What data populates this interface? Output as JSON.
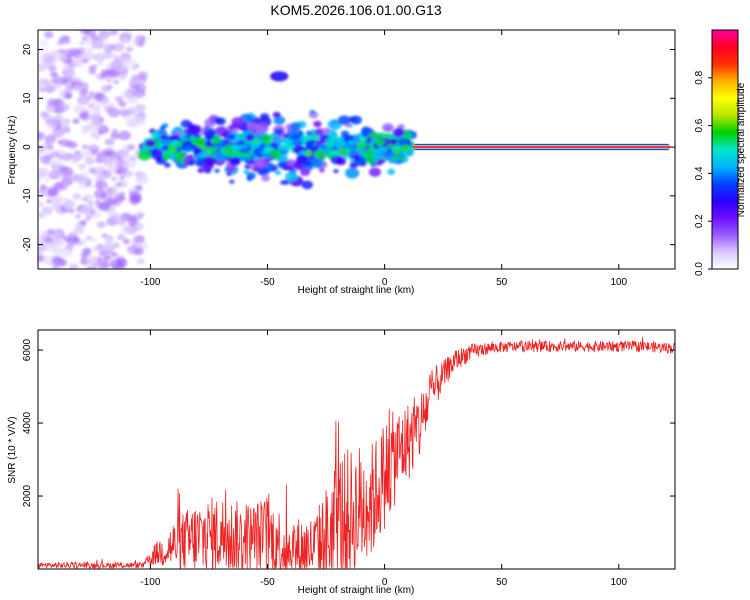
{
  "chart_data": [
    {
      "type": "heatmap",
      "title": "KOM5.2026.106.01.00.G13",
      "xlabel": "Height of straight line (km)",
      "ylabel": "Frequency (Hz)",
      "xlim": [
        -148,
        124
      ],
      "ylim": [
        -25,
        24
      ],
      "xticks": [
        -100,
        -50,
        0,
        50,
        100
      ],
      "xtick_labels": [
        "-100",
        "-50",
        "0",
        "50",
        "100"
      ],
      "yticks": [
        -20,
        -10,
        0,
        10,
        20
      ],
      "ytick_labels": [
        "-20",
        "-10",
        "0",
        "10",
        "20"
      ],
      "colorbar": {
        "label": "Normalized spectral amplitude",
        "range": [
          0,
          1
        ],
        "ticks": [
          0.0,
          0.2,
          0.4,
          0.6,
          0.8
        ],
        "tick_labels": [
          "0.0",
          "0.2",
          "0.4",
          "0.6",
          "0.8"
        ],
        "colormap": [
          "#ffffff",
          "#d9c7ff",
          "#9a5cff",
          "#6a0dff",
          "#2a00ff",
          "#0044ff",
          "#00b7ff",
          "#00e6c8",
          "#00d000",
          "#b7e600",
          "#ffff00",
          "#ffb000",
          "#ff3000",
          "#ff0020",
          "#ff00a0"
        ]
      },
      "features": [
        {
          "description": "weak noise speckle",
          "x_range": [
            -148,
            -103
          ],
          "freq_range": [
            -25,
            24
          ],
          "amplitude": 0.1
        },
        {
          "description": "scattered energy band",
          "x_range": [
            -103,
            12
          ],
          "freq_range": [
            -8,
            8
          ],
          "amplitude": 0.3
        },
        {
          "description": "isolated blob",
          "x": -45,
          "freq": 14.5,
          "amplitude": 0.35
        },
        {
          "description": "steady carrier tone",
          "x_range": [
            12,
            122
          ],
          "freq": 0,
          "amplitude": 1.0
        }
      ]
    },
    {
      "type": "line",
      "xlabel": "Height of straight line (km)",
      "ylabel": "SNR (10 * V/V)",
      "xlim": [
        -148,
        124
      ],
      "ylim": [
        0,
        6550
      ],
      "xticks": [
        -100,
        -50,
        0,
        50,
        100
      ],
      "xtick_labels": [
        "-100",
        "-50",
        "0",
        "50",
        "100"
      ],
      "yticks": [
        2000,
        4000,
        6000
      ],
      "ytick_labels": [
        "2000",
        "4000",
        "6000"
      ],
      "series": [
        {
          "name": "SNR",
          "color": "#ee2222",
          "envelope_x": [
            -148,
            -103,
            -98,
            -90,
            -80,
            -70,
            -60,
            -50,
            -40,
            -30,
            -25,
            -20,
            -15,
            -10,
            -5,
            0,
            5,
            10,
            15,
            20,
            25,
            30,
            35,
            40,
            45,
            50,
            60,
            70,
            80,
            90,
            100,
            110,
            124
          ],
          "envelope_mean": [
            100,
            100,
            400,
            650,
            800,
            950,
            800,
            900,
            500,
            600,
            800,
            1300,
            1400,
            1700,
            1900,
            2600,
            3100,
            3500,
            3900,
            4800,
            5300,
            5700,
            5900,
            6000,
            6050,
            6080,
            6100,
            6100,
            6100,
            6100,
            6100,
            6100,
            6050
          ],
          "envelope_spread": [
            80,
            80,
            300,
            700,
            1100,
            1100,
            1000,
            1100,
            900,
            900,
            1500,
            2000,
            1900,
            1800,
            1600,
            1500,
            1300,
            1100,
            1000,
            700,
            400,
            300,
            250,
            200,
            160,
            150,
            150,
            150,
            150,
            150,
            150,
            150,
            150
          ]
        }
      ]
    }
  ]
}
